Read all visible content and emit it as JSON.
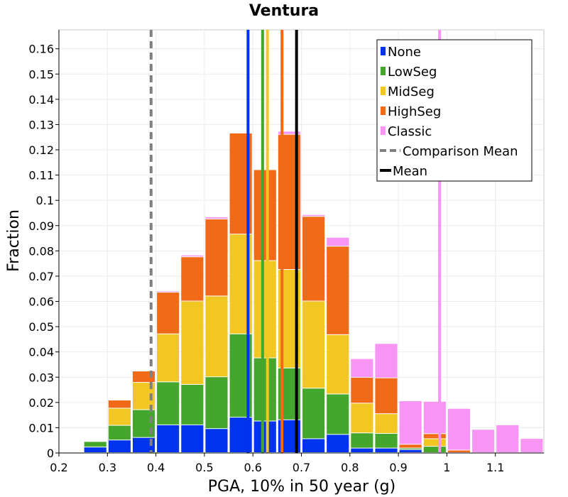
{
  "chart_data": {
    "type": "bar",
    "stacked": true,
    "title": "Ventura",
    "xlabel": "PGA, 10% in 50 year (g)",
    "ylabel": "Fraction",
    "xlim": [
      0.2,
      1.2
    ],
    "ylim": [
      0,
      0.1675
    ],
    "x_ticks": [
      "0.2",
      "0.3",
      "0.4",
      "0.5",
      "0.6",
      "0.7",
      "0.8",
      "0.9",
      "1",
      "1.1"
    ],
    "y_ticks": [
      "0",
      "0.01",
      "0.02",
      "0.03",
      "0.04",
      "0.05",
      "0.06",
      "0.07",
      "0.08",
      "0.09",
      "0.1",
      "0.11",
      "0.12",
      "0.13",
      "0.14",
      "0.15",
      "0.16"
    ],
    "grid": true,
    "legend_position": "top-right",
    "bin_starts": [
      0.25,
      0.3,
      0.35,
      0.4,
      0.45,
      0.5,
      0.55,
      0.6,
      0.65,
      0.7,
      0.75,
      0.8,
      0.85,
      0.9,
      0.95,
      1.0,
      1.05,
      1.1,
      1.15
    ],
    "bin_width": 0.05,
    "series": [
      {
        "name": "None",
        "color": "#0033ee",
        "values": [
          0.0022,
          0.005,
          0.006,
          0.011,
          0.011,
          0.0095,
          0.014,
          0.0125,
          0.013,
          0.0055,
          0.0072,
          0.0018,
          0.0018,
          0.0012,
          0,
          0,
          0,
          0,
          0
        ]
      },
      {
        "name": "LowSeg",
        "color": "#44a62c",
        "values": [
          0.0022,
          0.0058,
          0.011,
          0.017,
          0.016,
          0.0205,
          0.033,
          0.025,
          0.0205,
          0.02,
          0.016,
          0.006,
          0.0058,
          0.0006,
          0.0025,
          0,
          0,
          0,
          0
        ]
      },
      {
        "name": "MidSeg",
        "color": "#f2c623",
        "values": [
          0,
          0.0068,
          0.0108,
          0.019,
          0.033,
          0.032,
          0.0395,
          0.0385,
          0.039,
          0.0345,
          0.0235,
          0.0118,
          0.0078,
          0,
          0.003,
          0,
          0,
          0,
          0
        ]
      },
      {
        "name": "HighSeg",
        "color": "#f06a18",
        "values": [
          0,
          0.0032,
          0.0045,
          0.0165,
          0.0175,
          0.0305,
          0.04,
          0.036,
          0.0535,
          0.0335,
          0.035,
          0.0102,
          0.0142,
          0.0015,
          0.002,
          0.001,
          0,
          0,
          0
        ]
      },
      {
        "name": "Classic",
        "color": "#f894f4",
        "values": [
          0,
          0,
          0,
          0.0005,
          0.0007,
          0.0008,
          0,
          0,
          0.0012,
          0.0007,
          0.0035,
          0.0074,
          0.0136,
          0.0172,
          0.0128,
          0.0165,
          0.0092,
          0.011,
          0.0056
        ]
      }
    ],
    "mean_lines": [
      {
        "series": "None",
        "x": 0.59,
        "color": "#0033ee",
        "style": "solid"
      },
      {
        "series": "LowSeg",
        "x": 0.62,
        "color": "#44a62c",
        "style": "solid"
      },
      {
        "series": "MidSeg",
        "x": 0.63,
        "color": "#f2c623",
        "style": "solid"
      },
      {
        "series": "HighSeg",
        "x": 0.66,
        "color": "#f06a18",
        "style": "solid"
      },
      {
        "series": "Classic",
        "x": 0.985,
        "color": "#f894f4",
        "style": "solid"
      },
      {
        "series": "Comparison Mean",
        "x": 0.39,
        "color": "#808080",
        "style": "dashed"
      },
      {
        "series": "Mean",
        "x": 0.69,
        "color": "#000000",
        "style": "solid"
      }
    ],
    "legend": [
      {
        "label": "None",
        "color": "#0033ee",
        "marker": "box"
      },
      {
        "label": "LowSeg",
        "color": "#44a62c",
        "marker": "box"
      },
      {
        "label": "MidSeg",
        "color": "#f2c623",
        "marker": "box"
      },
      {
        "label": "HighSeg",
        "color": "#f06a18",
        "marker": "box"
      },
      {
        "label": "Classic",
        "color": "#f894f4",
        "marker": "box"
      },
      {
        "label": "Comparison Mean",
        "color": "#808080",
        "marker": "dashed"
      },
      {
        "label": "Mean",
        "color": "#000000",
        "marker": "line"
      }
    ]
  }
}
